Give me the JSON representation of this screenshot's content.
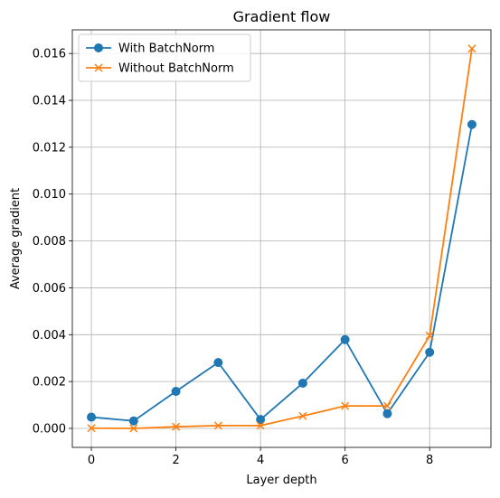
{
  "chart_data": {
    "type": "line",
    "title": "Gradient flow",
    "xlabel": "Layer depth",
    "ylabel": "Average gradient",
    "x": [
      0,
      1,
      2,
      3,
      4,
      5,
      6,
      7,
      8,
      9
    ],
    "xlim": [
      -0.45,
      9.45
    ],
    "ylim": [
      -0.00081,
      0.01701
    ],
    "xticks": [
      0,
      2,
      4,
      6,
      8
    ],
    "xtick_labels": [
      "0",
      "2",
      "4",
      "6",
      "8"
    ],
    "yticks": [
      0,
      0.002,
      0.004,
      0.006,
      0.008,
      0.01,
      0.012,
      0.014,
      0.016
    ],
    "ytick_labels": [
      "0.000",
      "0.002",
      "0.004",
      "0.006",
      "0.008",
      "0.010",
      "0.012",
      "0.014",
      "0.016"
    ],
    "grid": true,
    "legend_position": "top-left",
    "series": [
      {
        "name": "With BatchNorm",
        "marker": "circle",
        "color": "#1f77b4",
        "values": [
          0.00048,
          0.00032,
          0.00158,
          0.00281,
          0.00038,
          0.00193,
          0.00379,
          0.00063,
          0.00325,
          0.01297
        ]
      },
      {
        "name": "Without BatchNorm",
        "marker": "x",
        "color": "#ff7f0e",
        "values": [
          1e-05,
          0.0,
          7e-05,
          0.00012,
          0.00012,
          0.00053,
          0.00096,
          0.00096,
          0.00396,
          0.01621
        ]
      }
    ]
  }
}
